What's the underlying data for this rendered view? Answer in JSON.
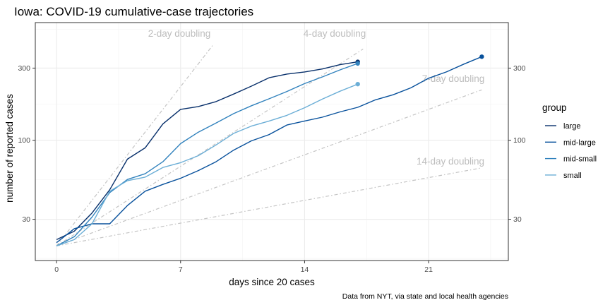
{
  "chart_data": {
    "type": "line",
    "title": "Iowa: COVID-19 cumulative-case trajectories",
    "xlabel": "days since 20 cases",
    "ylabel": "number of reported cases",
    "caption": "Data from NYT, via state and local health agencies",
    "y_scale": "log10",
    "xlim": [
      -1.2,
      25.5
    ],
    "ylim": [
      16,
      600
    ],
    "x_ticks": [
      0,
      7,
      14,
      21
    ],
    "y_ticks": [
      30,
      100,
      300
    ],
    "legend": {
      "title": "group",
      "position": "right"
    },
    "series": [
      {
        "name": "large",
        "color": "#08306b",
        "x": [
          0,
          1,
          2,
          3,
          4,
          5,
          6,
          7,
          8,
          9,
          10,
          11,
          12,
          13,
          14,
          15,
          16,
          17
        ],
        "y": [
          22,
          25,
          33,
          47,
          75,
          89,
          128,
          160,
          167,
          180,
          202,
          228,
          259,
          274,
          283,
          296,
          316,
          330
        ],
        "end_point": true
      },
      {
        "name": "mid-large",
        "color": "#08519c",
        "x": [
          0,
          1,
          2,
          3,
          4,
          5,
          6,
          7,
          8,
          9,
          10,
          11,
          12,
          13,
          14,
          15,
          16,
          17,
          18,
          19,
          20,
          21,
          22,
          23,
          24
        ],
        "y": [
          21,
          26,
          28,
          28,
          37,
          46,
          51,
          56,
          63,
          72,
          86,
          99,
          109,
          126,
          134,
          142,
          154,
          165,
          185,
          200,
          222,
          257,
          283,
          319,
          357
        ],
        "end_point": true
      },
      {
        "name": "mid-small",
        "color": "#3182bd",
        "x": [
          0,
          1,
          2,
          3,
          4,
          5,
          6,
          7,
          8,
          9,
          10,
          11,
          12,
          13,
          14,
          15,
          16,
          17
        ],
        "y": [
          20,
          23,
          31,
          45,
          55,
          60,
          72,
          95,
          113,
          130,
          150,
          169,
          188,
          210,
          237,
          262,
          292,
          322
        ],
        "end_point": true
      },
      {
        "name": "small",
        "color": "#6baed6",
        "x": [
          0,
          1,
          2,
          3,
          4,
          5,
          6,
          7,
          8,
          9,
          10,
          11,
          12,
          13,
          14,
          15,
          16,
          17
        ],
        "y": [
          20,
          22,
          28,
          46,
          54,
          57,
          66,
          71,
          79,
          93,
          111,
          124,
          134,
          146,
          164,
          187,
          211,
          235
        ],
        "end_point": true
      }
    ],
    "doubling_guides": [
      {
        "label": "2-day doubling",
        "days": 2,
        "x_end": 8.8
      },
      {
        "label": "4-day doubling",
        "days": 4,
        "x_end": 17.3
      },
      {
        "label": "7-day doubling",
        "days": 7,
        "x_end": 24
      },
      {
        "label": "14-day doubling",
        "days": 14,
        "x_end": 24
      }
    ]
  }
}
